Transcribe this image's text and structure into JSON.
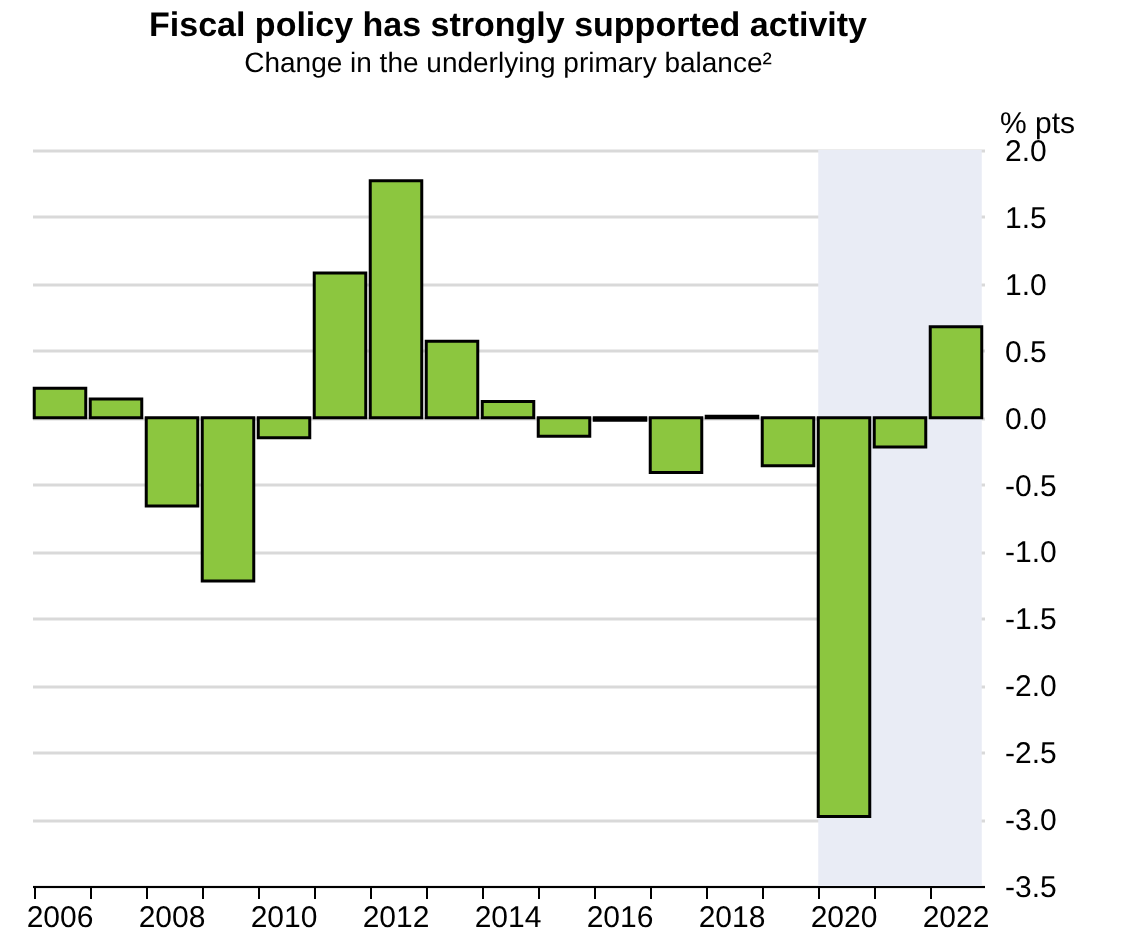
{
  "chart_data": {
    "type": "bar",
    "title": "Fiscal policy has strongly supported activity",
    "subtitle": "Change in the underlying primary balance²",
    "ylabel": "% pts",
    "categories": [
      "2006",
      null,
      "2008",
      null,
      "2010",
      null,
      "2012",
      null,
      "2014",
      null,
      "2016",
      null,
      "2018",
      null,
      "2020",
      null,
      "2022"
    ],
    "values": [
      0.22,
      0.14,
      -0.66,
      -1.22,
      -0.15,
      1.08,
      1.77,
      0.57,
      0.12,
      -0.14,
      -0.02,
      -0.41,
      0.01,
      -0.36,
      -2.98,
      -0.22,
      0.68
    ],
    "color": "#8cc63f",
    "ylim": [
      -3.5,
      2.0
    ],
    "yticks": [
      {
        "value": -3.5,
        "label": "-3.5"
      },
      {
        "value": -3,
        "label": "-3.0"
      },
      {
        "value": -2.5,
        "label": "-2.5"
      },
      {
        "value": -2,
        "label": "-2.0"
      },
      {
        "value": -1.5,
        "label": "-1.5"
      },
      {
        "value": -1,
        "label": "-1.0"
      },
      {
        "value": -0.5,
        "label": "-0.5"
      },
      {
        "value": 0,
        "label": "0.0"
      },
      {
        "value": 0.5,
        "label": "0.5"
      },
      {
        "value": 1,
        "label": "1.0"
      },
      {
        "value": 1.5,
        "label": "1.5"
      },
      {
        "value": 2,
        "label": "2.0"
      }
    ],
    "bands": [
      {
        "axis": "x",
        "from": "2020",
        "to": "2022",
        "color": "#e9ecf5"
      }
    ],
    "grid": "y"
  }
}
